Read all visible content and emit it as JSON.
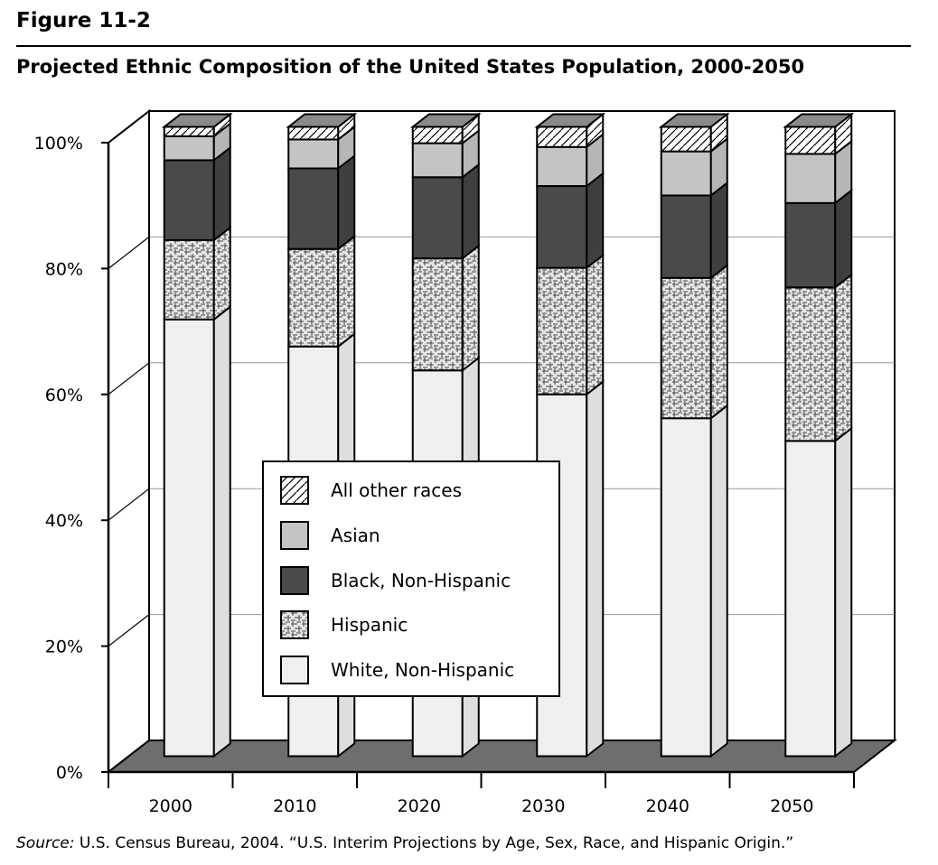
{
  "figure_label": "Figure 11-2",
  "source": {
    "label": "Source:",
    "text": " U.S. Census Bureau, 2004. “U.S. Interim Projections by Age, Sex, Race, and Hispanic Origin.”"
  },
  "colors": {
    "white_non_hispanic": "#efefef",
    "hispanic": "#e6e6e6",
    "black_non_hispanic": "#4a4a4a",
    "asian": "#c4c4c4",
    "all_other": "#ffffff",
    "floor": "#6e6e6e",
    "gridline": "#999999"
  },
  "chart_data": {
    "type": "bar",
    "stacked": true,
    "three_d": true,
    "title": "Projected Ethnic Composition of the United States Population, 2000-2050",
    "xlabel": "",
    "ylabel": "",
    "ylim": [
      0,
      100
    ],
    "yticks": [
      "0%",
      "20%",
      "40%",
      "60%",
      "80%",
      "100%"
    ],
    "categories": [
      "2000",
      "2010",
      "2020",
      "2030",
      "2040",
      "2050"
    ],
    "grid": true,
    "legend_position": "center",
    "series": [
      {
        "name": "White, Non-Hispanic",
        "key": "white_non_hispanic",
        "values": [
          69.4,
          65.1,
          61.3,
          57.5,
          53.7,
          50.1
        ]
      },
      {
        "name": "Hispanic",
        "key": "hispanic",
        "values": [
          12.6,
          15.5,
          17.8,
          20.1,
          22.3,
          24.4
        ]
      },
      {
        "name": "Black, Non-Hispanic",
        "key": "black_non_hispanic",
        "values": [
          12.7,
          12.8,
          12.9,
          13.0,
          13.1,
          13.4
        ]
      },
      {
        "name": "Asian",
        "key": "asian",
        "values": [
          3.8,
          4.6,
          5.4,
          6.2,
          7.0,
          7.8
        ]
      },
      {
        "name": "All other races",
        "key": "all_other",
        "values": [
          1.5,
          2.0,
          2.6,
          3.2,
          3.9,
          4.3
        ]
      }
    ],
    "legend_order": [
      "All other races",
      "Asian",
      "Black, Non-Hispanic",
      "Hispanic",
      "White, Non-Hispanic"
    ]
  }
}
